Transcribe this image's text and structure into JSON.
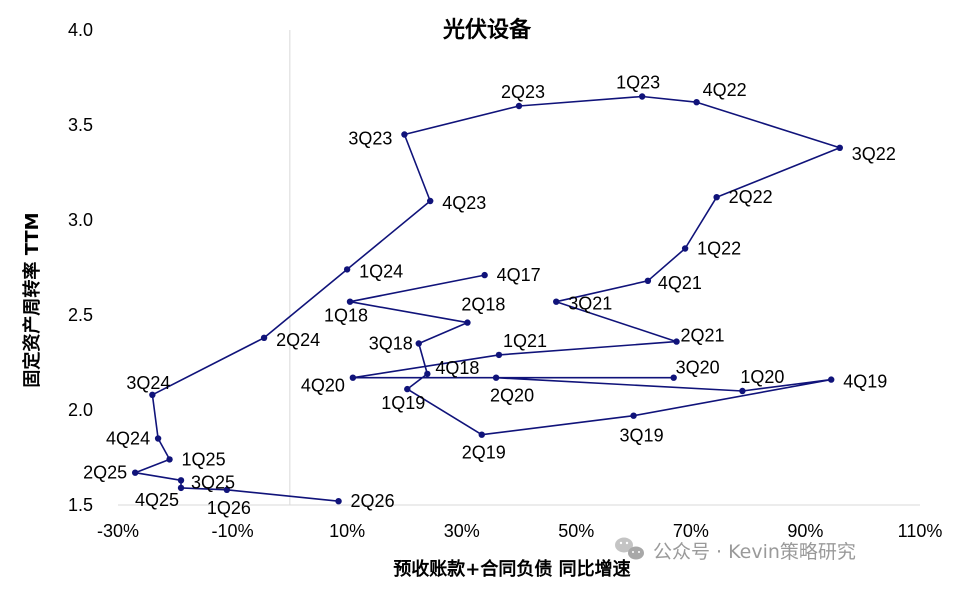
{
  "chart_data": {
    "type": "line",
    "title": "光伏设备",
    "xlabel": "预收账款+合同负债 同比增速",
    "ylabel": "固定资产周转率 TTM",
    "xlim": [
      -30,
      110
    ],
    "ylim": [
      1.5,
      4.0
    ],
    "x_ticks": [
      "-30%",
      "-10%",
      "10%",
      "30%",
      "50%",
      "70%",
      "90%",
      "110%"
    ],
    "y_ticks": [
      "1.5",
      "2.0",
      "2.5",
      "3.0",
      "3.5",
      "4.0"
    ],
    "grid": false,
    "legend": "none",
    "series_color": "#10137a",
    "points": [
      {
        "label": "4Q17",
        "x": 34.0,
        "y": 2.71
      },
      {
        "label": "1Q18",
        "x": 10.5,
        "y": 2.57
      },
      {
        "label": "2Q18",
        "x": 31.0,
        "y": 2.46
      },
      {
        "label": "3Q18",
        "x": 22.5,
        "y": 2.35
      },
      {
        "label": "4Q18",
        "x": 24.0,
        "y": 2.19
      },
      {
        "label": "1Q19",
        "x": 20.5,
        "y": 2.11
      },
      {
        "label": "2Q19",
        "x": 33.5,
        "y": 1.87
      },
      {
        "label": "3Q19",
        "x": 60.0,
        "y": 1.97
      },
      {
        "label": "4Q19",
        "x": 94.5,
        "y": 2.16
      },
      {
        "label": "1Q20",
        "x": 79.0,
        "y": 2.1
      },
      {
        "label": "2Q20",
        "x": 36.0,
        "y": 2.17
      },
      {
        "label": "3Q20",
        "x": 67.0,
        "y": 2.17
      },
      {
        "label": "4Q20",
        "x": 11.0,
        "y": 2.17
      },
      {
        "label": "1Q21",
        "x": 36.5,
        "y": 2.29
      },
      {
        "label": "2Q21",
        "x": 67.5,
        "y": 2.36
      },
      {
        "label": "3Q21",
        "x": 46.5,
        "y": 2.57
      },
      {
        "label": "4Q21",
        "x": 62.5,
        "y": 2.68
      },
      {
        "label": "1Q22",
        "x": 69.0,
        "y": 2.85
      },
      {
        "label": "2Q22",
        "x": 74.5,
        "y": 3.12
      },
      {
        "label": "3Q22",
        "x": 96.0,
        "y": 3.38
      },
      {
        "label": "4Q22",
        "x": 71.0,
        "y": 3.62
      },
      {
        "label": "1Q23",
        "x": 61.5,
        "y": 3.65
      },
      {
        "label": "2Q23",
        "x": 40.0,
        "y": 3.6
      },
      {
        "label": "3Q23",
        "x": 20.0,
        "y": 3.45
      },
      {
        "label": "4Q23",
        "x": 24.5,
        "y": 3.1
      },
      {
        "label": "1Q24",
        "x": 10.0,
        "y": 2.74
      },
      {
        "label": "2Q24",
        "x": -4.5,
        "y": 2.38
      },
      {
        "label": "3Q24",
        "x": -24.0,
        "y": 2.08
      },
      {
        "label": "4Q24",
        "x": -23.0,
        "y": 1.85
      },
      {
        "label": "1Q25",
        "x": -21.0,
        "y": 1.74
      },
      {
        "label": "2Q25",
        "x": -27.0,
        "y": 1.67
      },
      {
        "label": "3Q25",
        "x": -19.0,
        "y": 1.63
      },
      {
        "label": "4Q25",
        "x": -19.0,
        "y": 1.59
      },
      {
        "label": "1Q26",
        "x": -11.0,
        "y": 1.58
      },
      {
        "label": "2Q26",
        "x": 8.5,
        "y": 1.52
      }
    ]
  },
  "watermark": {
    "text": "公众号 · Kevin策略研究",
    "icon": "wechat-icon"
  }
}
